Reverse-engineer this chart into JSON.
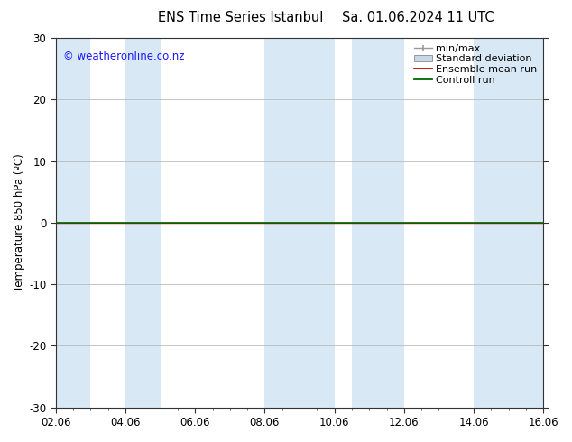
{
  "title_left": "ENS Time Series Istanbul",
  "title_right": "Sa. 01.06.2024 11 UTC",
  "ylabel": "Temperature 850 hPa (ºC)",
  "ylim": [
    -30,
    30
  ],
  "yticks": [
    -30,
    -20,
    -10,
    0,
    10,
    20,
    30
  ],
  "xlim_start": 0.0,
  "xlim_end": 14.0,
  "xtick_labels": [
    "02.06",
    "04.06",
    "06.06",
    "08.06",
    "10.06",
    "12.06",
    "14.06",
    "16.06"
  ],
  "xtick_positions": [
    0,
    2,
    4,
    6,
    8,
    10,
    12,
    14
  ],
  "copyright_text": "© weatheronline.co.nz",
  "copyright_color": "#1a1aff",
  "bg_color": "#ffffff",
  "plot_bg_color": "#ffffff",
  "shaded_bands": [
    [
      0.0,
      1.0
    ],
    [
      2.0,
      3.0
    ],
    [
      6.0,
      8.0
    ],
    [
      8.0,
      10.0
    ],
    [
      12.0,
      14.0
    ],
    [
      14.0,
      14.0
    ]
  ],
  "shade_color": "#d8e8f5",
  "zero_line_y": 0,
  "green_line_color": "#006600",
  "red_line_color": "#cc0000",
  "legend_entries": [
    "min/max",
    "Standard deviation",
    "Ensemble mean run",
    "Controll run"
  ],
  "spine_color": "#333333",
  "tick_color": "#333333",
  "font_size": 8.5,
  "title_font_size": 10.5
}
